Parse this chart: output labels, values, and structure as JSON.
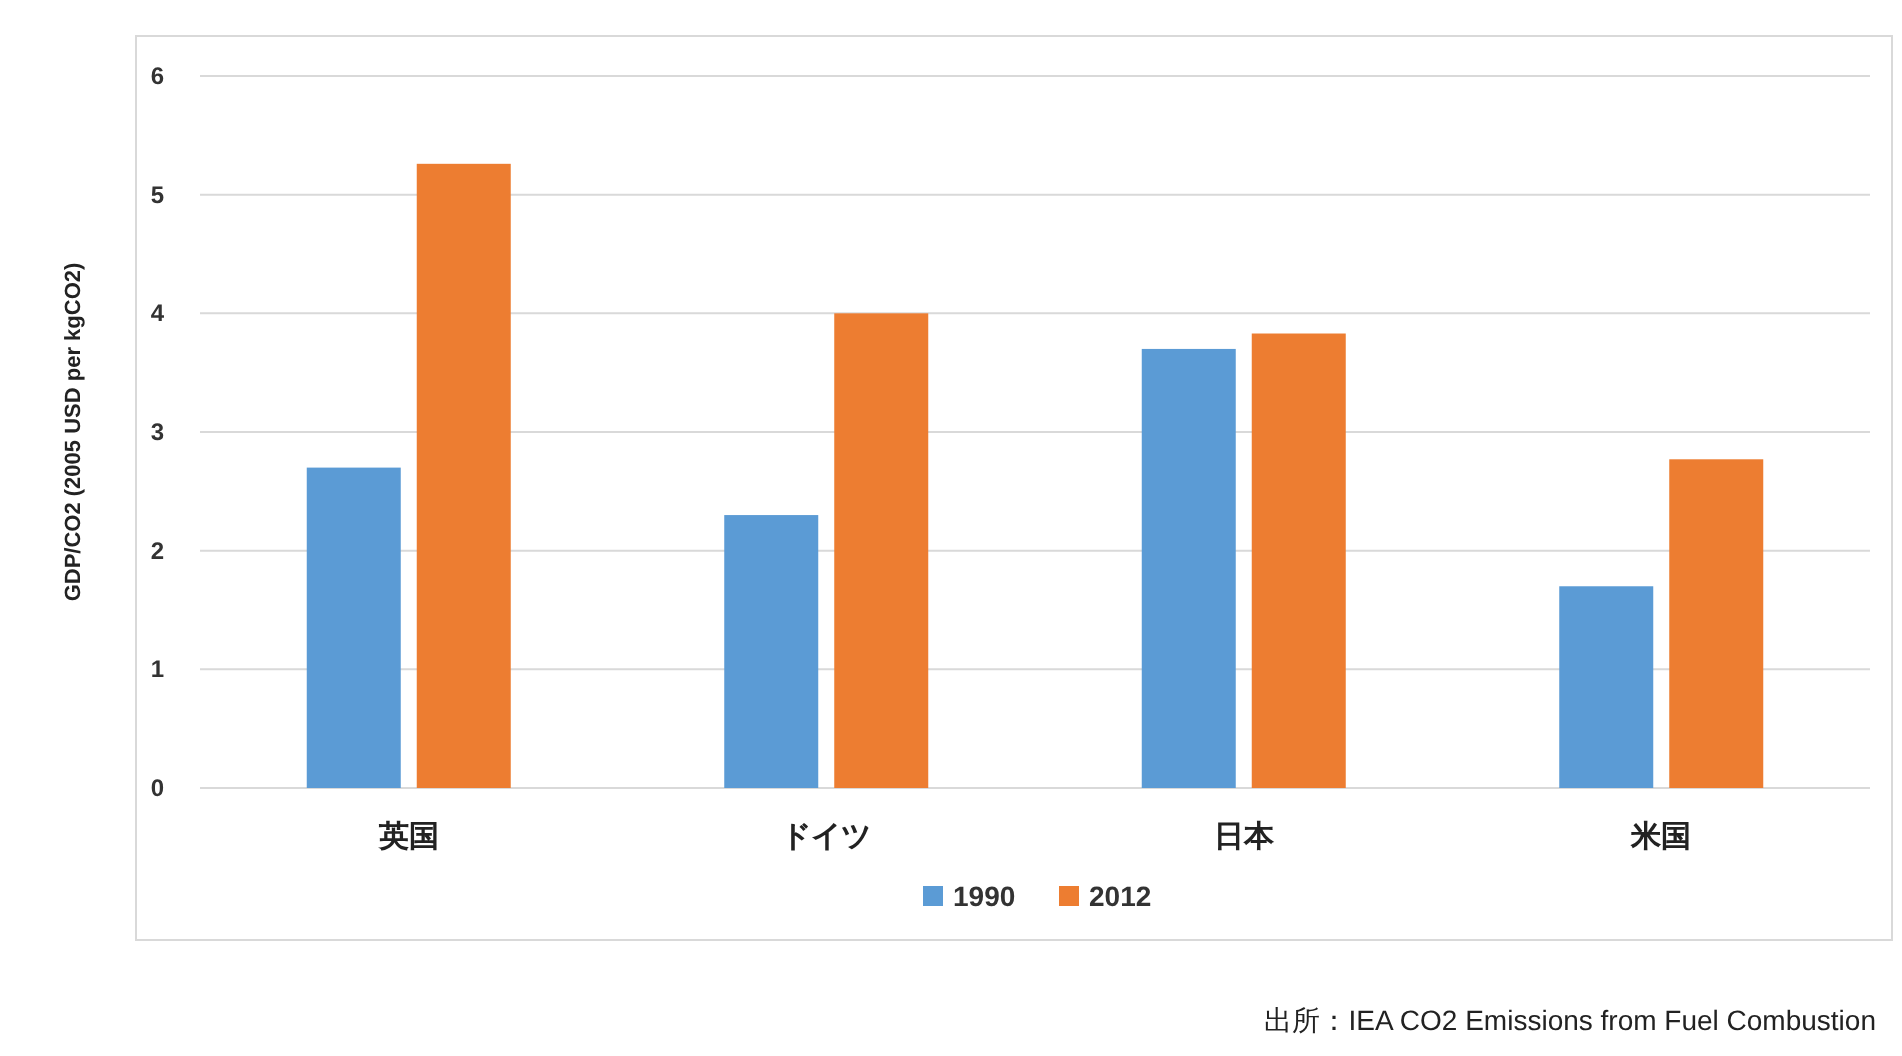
{
  "chart_data": {
    "type": "bar",
    "ylabel": "GDP/CO2 (2005 USD per kgCO2)",
    "categories": [
      "英国",
      "ドイツ",
      "日本",
      "米国"
    ],
    "series": [
      {
        "name": "1990",
        "color": "#5b9bd5",
        "values": [
          2.7,
          2.3,
          3.7,
          1.7
        ]
      },
      {
        "name": "2012",
        "color": "#ed7d31",
        "values": [
          5.26,
          4.0,
          3.83,
          2.77
        ]
      }
    ],
    "ylim": [
      0,
      6
    ],
    "yticks": [
      0,
      1,
      2,
      3,
      4,
      5,
      6
    ],
    "grid": "y",
    "legend": "bottom",
    "annotations": [
      "出所：IEA CO2 Emissions from Fuel Combustion"
    ]
  }
}
